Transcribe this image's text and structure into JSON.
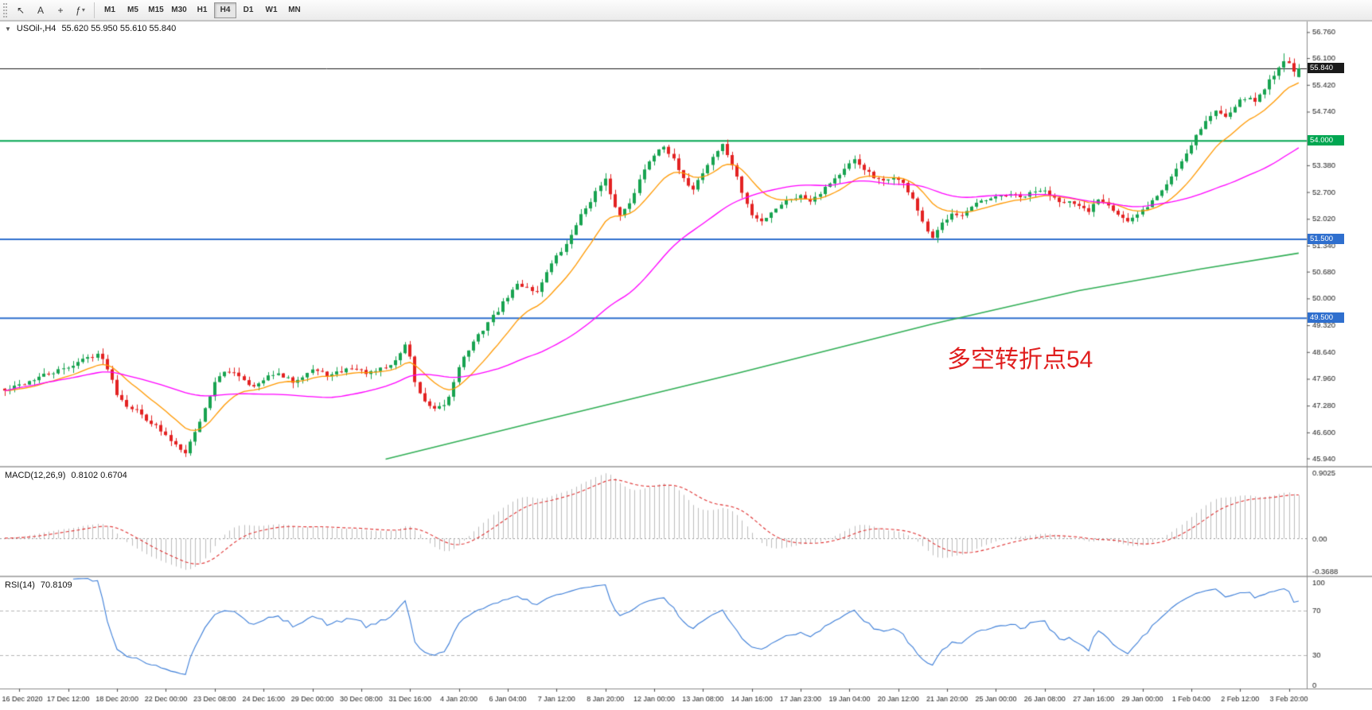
{
  "toolbar": {
    "tools": [
      {
        "id": "cursor",
        "glyph": "↖"
      },
      {
        "id": "text-label",
        "glyph": "A"
      },
      {
        "id": "crosshair",
        "glyph": "+"
      },
      {
        "id": "indicators",
        "glyph": "ƒ",
        "dropdown": "▾"
      }
    ],
    "timeframes": [
      "M1",
      "M5",
      "M15",
      "M30",
      "H1",
      "H4",
      "D1",
      "W1",
      "MN"
    ],
    "active_timeframe": "H4"
  },
  "chart": {
    "collapse_glyph": "▼",
    "title": "USOil-,H4",
    "ohlc_text": "55.620 55.950 55.610 55.840",
    "annotation": {
      "text": "多空转折点54",
      "color": "#e01f1f"
    }
  },
  "chart_data": {
    "type": "candlestick",
    "symbol": "USOil-",
    "timeframe": "H4",
    "current_ohlc": [
      55.62,
      55.95,
      55.61,
      55.84
    ],
    "bars": 266,
    "colors": {
      "up": "#18a350",
      "down": "#e32222",
      "ma_fast": "#ff9900",
      "ma_slow": "#ff00ff",
      "ma_long": "#2fae54",
      "bid": "#333333"
    },
    "price_axis": {
      "min": 45.75,
      "max": 57.05,
      "ticks": [
        "56.760",
        "56.100",
        "55.420",
        "54.740",
        "53.380",
        "52.700",
        "52.020",
        "51.340",
        "50.680",
        "50.000",
        "49.320",
        "48.640",
        "47.960",
        "47.280",
        "46.600",
        "45.940"
      ]
    },
    "hlines": [
      {
        "price": 54.0,
        "label": "54.000",
        "color": "#00a651"
      },
      {
        "price": 51.5,
        "label": "51.500",
        "color": "#2f6fce"
      },
      {
        "price": 49.5,
        "label": "49.500",
        "color": "#2f6fce"
      }
    ],
    "bid_line": {
      "price": 55.84,
      "label": "55.840",
      "color": "#1a1a1a"
    },
    "ma_fast_period": 13,
    "ma_slow_period": 45,
    "ma_long_anchors": [
      [
        78,
        45.92
      ],
      [
        110,
        46.9
      ],
      [
        150,
        48.1
      ],
      [
        190,
        49.35
      ],
      [
        220,
        50.2
      ],
      [
        245,
        50.75
      ],
      [
        265,
        51.15
      ]
    ],
    "close_anchors": [
      [
        0,
        47.65
      ],
      [
        4,
        47.85
      ],
      [
        8,
        48.05
      ],
      [
        12,
        48.2
      ],
      [
        16,
        48.45
      ],
      [
        19,
        48.6
      ],
      [
        21,
        48.25
      ],
      [
        23,
        47.6
      ],
      [
        25,
        47.3
      ],
      [
        27,
        47.15
      ],
      [
        29,
        46.95
      ],
      [
        31,
        46.75
      ],
      [
        33,
        46.5
      ],
      [
        35,
        46.3
      ],
      [
        37,
        46.12
      ],
      [
        39,
        46.6
      ],
      [
        41,
        47.2
      ],
      [
        43,
        47.9
      ],
      [
        45,
        48.1
      ],
      [
        47,
        48.15
      ],
      [
        49,
        47.95
      ],
      [
        51,
        47.75
      ],
      [
        53,
        47.9
      ],
      [
        55,
        48.1
      ],
      [
        57,
        48.0
      ],
      [
        59,
        47.9
      ],
      [
        61,
        48.05
      ],
      [
        63,
        48.2
      ],
      [
        65,
        48.1
      ],
      [
        67,
        48.05
      ],
      [
        69,
        48.15
      ],
      [
        71,
        48.25
      ],
      [
        73,
        48.15
      ],
      [
        75,
        48.1
      ],
      [
        77,
        48.2
      ],
      [
        79,
        48.3
      ],
      [
        81,
        48.6
      ],
      [
        82,
        48.85
      ],
      [
        83,
        48.5
      ],
      [
        84,
        47.9
      ],
      [
        85,
        47.6
      ],
      [
        86,
        47.35
      ],
      [
        88,
        47.15
      ],
      [
        90,
        47.3
      ],
      [
        91,
        47.5
      ],
      [
        92,
        47.9
      ],
      [
        93,
        48.3
      ],
      [
        95,
        48.7
      ],
      [
        97,
        49.05
      ],
      [
        99,
        49.4
      ],
      [
        101,
        49.7
      ],
      [
        103,
        50.05
      ],
      [
        105,
        50.35
      ],
      [
        107,
        50.3
      ],
      [
        109,
        50.15
      ],
      [
        111,
        50.7
      ],
      [
        113,
        51.05
      ],
      [
        115,
        51.35
      ],
      [
        117,
        51.9
      ],
      [
        119,
        52.3
      ],
      [
        121,
        52.7
      ],
      [
        123,
        53.0
      ],
      [
        124,
        52.6
      ],
      [
        126,
        52.1
      ],
      [
        128,
        52.45
      ],
      [
        130,
        53.0
      ],
      [
        132,
        53.5
      ],
      [
        134,
        53.8
      ],
      [
        135,
        53.9
      ],
      [
        137,
        53.5
      ],
      [
        139,
        53.0
      ],
      [
        141,
        52.8
      ],
      [
        143,
        53.2
      ],
      [
        145,
        53.6
      ],
      [
        147,
        53.9
      ],
      [
        149,
        53.4
      ],
      [
        151,
        52.7
      ],
      [
        153,
        52.1
      ],
      [
        155,
        51.95
      ],
      [
        157,
        52.2
      ],
      [
        159,
        52.4
      ],
      [
        161,
        52.55
      ],
      [
        163,
        52.6
      ],
      [
        165,
        52.5
      ],
      [
        167,
        52.7
      ],
      [
        169,
        52.95
      ],
      [
        171,
        53.15
      ],
      [
        174,
        53.5
      ],
      [
        176,
        53.3
      ],
      [
        178,
        53.05
      ],
      [
        180,
        52.95
      ],
      [
        182,
        53.1
      ],
      [
        184,
        52.9
      ],
      [
        186,
        52.55
      ],
      [
        188,
        51.9
      ],
      [
        190,
        51.5
      ],
      [
        192,
        51.9
      ],
      [
        194,
        52.2
      ],
      [
        196,
        52.1
      ],
      [
        198,
        52.3
      ],
      [
        200,
        52.45
      ],
      [
        202,
        52.5
      ],
      [
        204,
        52.6
      ],
      [
        206,
        52.65
      ],
      [
        208,
        52.55
      ],
      [
        210,
        52.65
      ],
      [
        212,
        52.75
      ],
      [
        214,
        52.65
      ],
      [
        216,
        52.5
      ],
      [
        218,
        52.45
      ],
      [
        220,
        52.3
      ],
      [
        222,
        52.2
      ],
      [
        224,
        52.55
      ],
      [
        226,
        52.4
      ],
      [
        228,
        52.15
      ],
      [
        230,
        51.95
      ],
      [
        232,
        52.1
      ],
      [
        234,
        52.35
      ],
      [
        236,
        52.6
      ],
      [
        238,
        52.9
      ],
      [
        240,
        53.3
      ],
      [
        242,
        53.7
      ],
      [
        244,
        54.15
      ],
      [
        246,
        54.5
      ],
      [
        248,
        54.75
      ],
      [
        250,
        54.65
      ],
      [
        252,
        54.9
      ],
      [
        254,
        55.1
      ],
      [
        256,
        55.0
      ],
      [
        258,
        55.35
      ],
      [
        260,
        55.7
      ],
      [
        262,
        56.05
      ],
      [
        263,
        55.95
      ],
      [
        264,
        55.75
      ],
      [
        265,
        55.84
      ]
    ],
    "time_labels": [
      "16 Dec 2020",
      "17 Dec 12:00",
      "18 Dec 20:00",
      "22 Dec 00:00",
      "23 Dec 08:00",
      "24 Dec 16:00",
      "29 Dec 00:00",
      "30 Dec 08:00",
      "31 Dec 16:00",
      "4 Jan 20:00",
      "6 Jan 04:00",
      "7 Jan 12:00",
      "8 Jan 20:00",
      "12 Jan 00:00",
      "13 Jan 08:00",
      "14 Jan 16:00",
      "17 Jan 23:00",
      "19 Jan 04:00",
      "20 Jan 12:00",
      "21 Jan 20:00",
      "25 Jan 00:00",
      "26 Jan 08:00",
      "27 Jan 16:00",
      "29 Jan 00:00",
      "1 Feb 04:00",
      "2 Feb 12:00",
      "3 Feb 20:00"
    ],
    "label_start_index": 3,
    "label_step": 10,
    "macd": {
      "label": "MACD(12,26,9)",
      "values": "0.8102 0.6704",
      "fast": 12,
      "slow": 26,
      "signal": 9,
      "axis": [
        "0.9025",
        "0.00",
        "-0.3688"
      ],
      "hist_color": "#bdbdbd",
      "signal_color": "#e03131"
    },
    "rsi": {
      "label": "RSI(14)",
      "value": "70.8109",
      "period": 14,
      "levels": [
        70,
        30
      ],
      "axis": [
        "100",
        "70",
        "30",
        "0"
      ],
      "color": "#3b7dd8"
    }
  }
}
